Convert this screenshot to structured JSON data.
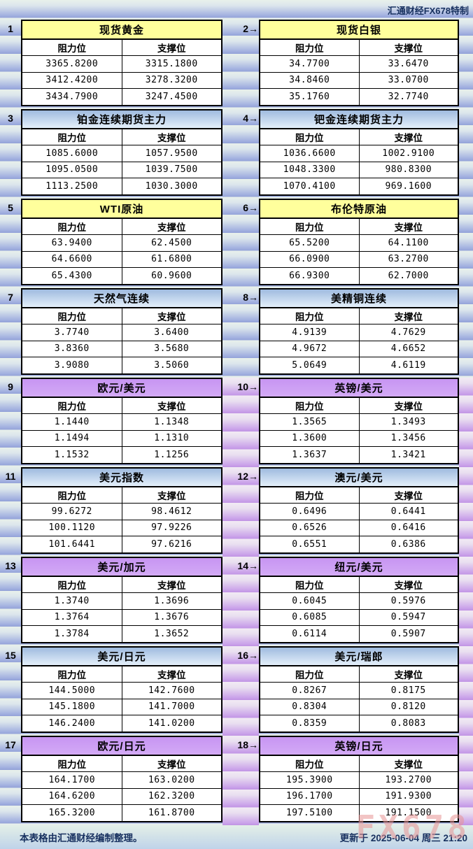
{
  "brand": "汇通财经FX678特制",
  "columns": {
    "resistance": "阻力位",
    "support": "支撑位"
  },
  "footer": {
    "note": "本表格由汇通财经编制整理。",
    "updated": "更新于 2025-06-04 周三 21:20"
  },
  "watermark": "FX678",
  "colors": {
    "yellow_header": "#FFFF9C",
    "blue_header_top": "#9FBBDF",
    "blue_header_bottom": "#E4EFFA",
    "purple_header": "#CC99FF",
    "band_blue": "#A3B1E0",
    "band_purple": "#C9A2E9",
    "navy_text": "#17305F"
  },
  "panels": [
    {
      "num": "1",
      "title": "现货黄金",
      "theme": "yellow",
      "rows": [
        [
          "3365.8200",
          "3315.1800"
        ],
        [
          "3412.4200",
          "3278.3200"
        ],
        [
          "3434.7900",
          "3247.4500"
        ]
      ]
    },
    {
      "num": "2→",
      "title": "现货白银",
      "theme": "yellow",
      "rows": [
        [
          "34.7700",
          "33.6470"
        ],
        [
          "34.8460",
          "33.0700"
        ],
        [
          "35.1760",
          "32.7740"
        ]
      ]
    },
    {
      "num": "3",
      "title": "铂金连续期货主力",
      "theme": "blue",
      "rows": [
        [
          "1085.6000",
          "1057.9500"
        ],
        [
          "1095.0500",
          "1039.7500"
        ],
        [
          "1113.2500",
          "1030.3000"
        ]
      ]
    },
    {
      "num": "4→",
      "title": "钯金连续期货主力",
      "theme": "blue",
      "rows": [
        [
          "1036.6600",
          "1002.9100"
        ],
        [
          "1048.3300",
          "980.8300"
        ],
        [
          "1070.4100",
          "969.1600"
        ]
      ]
    },
    {
      "num": "5",
      "title": "WTI原油",
      "theme": "yellow",
      "rows": [
        [
          "63.9400",
          "62.4500"
        ],
        [
          "64.6600",
          "61.6800"
        ],
        [
          "65.4300",
          "60.9600"
        ]
      ]
    },
    {
      "num": "6→",
      "title": "布伦特原油",
      "theme": "yellow",
      "rows": [
        [
          "65.5200",
          "64.1100"
        ],
        [
          "66.0900",
          "63.2700"
        ],
        [
          "66.9300",
          "62.7000"
        ]
      ]
    },
    {
      "num": "7",
      "title": "天然气连续",
      "theme": "blue",
      "rows": [
        [
          "3.7740",
          "3.6400"
        ],
        [
          "3.8360",
          "3.5680"
        ],
        [
          "3.9080",
          "3.5060"
        ]
      ]
    },
    {
      "num": "8→",
      "title": "美精铜连续",
      "theme": "blue",
      "rows": [
        [
          "4.9139",
          "4.7629"
        ],
        [
          "4.9672",
          "4.6652"
        ],
        [
          "5.0649",
          "4.6119"
        ]
      ]
    },
    {
      "num": "9",
      "title": "欧元/美元",
      "theme": "purple",
      "rows": [
        [
          "1.1440",
          "1.1348"
        ],
        [
          "1.1494",
          "1.1310"
        ],
        [
          "1.1532",
          "1.1256"
        ]
      ]
    },
    {
      "num": "10→",
      "title": "英镑/美元",
      "theme": "purple",
      "rows": [
        [
          "1.3565",
          "1.3493"
        ],
        [
          "1.3600",
          "1.3456"
        ],
        [
          "1.3637",
          "1.3421"
        ]
      ]
    },
    {
      "num": "11",
      "title": "美元指数",
      "theme": "blue",
      "rows": [
        [
          "99.6272",
          "98.4612"
        ],
        [
          "100.1120",
          "97.9226"
        ],
        [
          "101.6441",
          "97.6216"
        ]
      ]
    },
    {
      "num": "12→",
      "title": "澳元/美元",
      "theme": "blue",
      "rows": [
        [
          "0.6496",
          "0.6441"
        ],
        [
          "0.6526",
          "0.6416"
        ],
        [
          "0.6551",
          "0.6386"
        ]
      ]
    },
    {
      "num": "13",
      "title": "美元/加元",
      "theme": "purple",
      "rows": [
        [
          "1.3740",
          "1.3696"
        ],
        [
          "1.3764",
          "1.3676"
        ],
        [
          "1.3784",
          "1.3652"
        ]
      ]
    },
    {
      "num": "14→",
      "title": "纽元/美元",
      "theme": "purple",
      "rows": [
        [
          "0.6045",
          "0.5976"
        ],
        [
          "0.6085",
          "0.5947"
        ],
        [
          "0.6114",
          "0.5907"
        ]
      ]
    },
    {
      "num": "15",
      "title": "美元/日元",
      "theme": "blue",
      "rows": [
        [
          "144.5000",
          "142.7600"
        ],
        [
          "145.1800",
          "141.7000"
        ],
        [
          "146.2400",
          "141.0200"
        ]
      ]
    },
    {
      "num": "16→",
      "title": "美元/瑞郎",
      "theme": "blue",
      "rows": [
        [
          "0.8267",
          "0.8175"
        ],
        [
          "0.8304",
          "0.8120"
        ],
        [
          "0.8359",
          "0.8083"
        ]
      ]
    },
    {
      "num": "17",
      "title": "欧元/日元",
      "theme": "purple",
      "rows": [
        [
          "164.1700",
          "163.0200"
        ],
        [
          "164.6200",
          "162.3200"
        ],
        [
          "165.3200",
          "161.8700"
        ]
      ]
    },
    {
      "num": "18→",
      "title": "英镑/日元",
      "theme": "purple",
      "rows": [
        [
          "195.3900",
          "193.2700"
        ],
        [
          "196.1700",
          "191.9300"
        ],
        [
          "197.5100",
          "191.1500"
        ]
      ]
    }
  ]
}
